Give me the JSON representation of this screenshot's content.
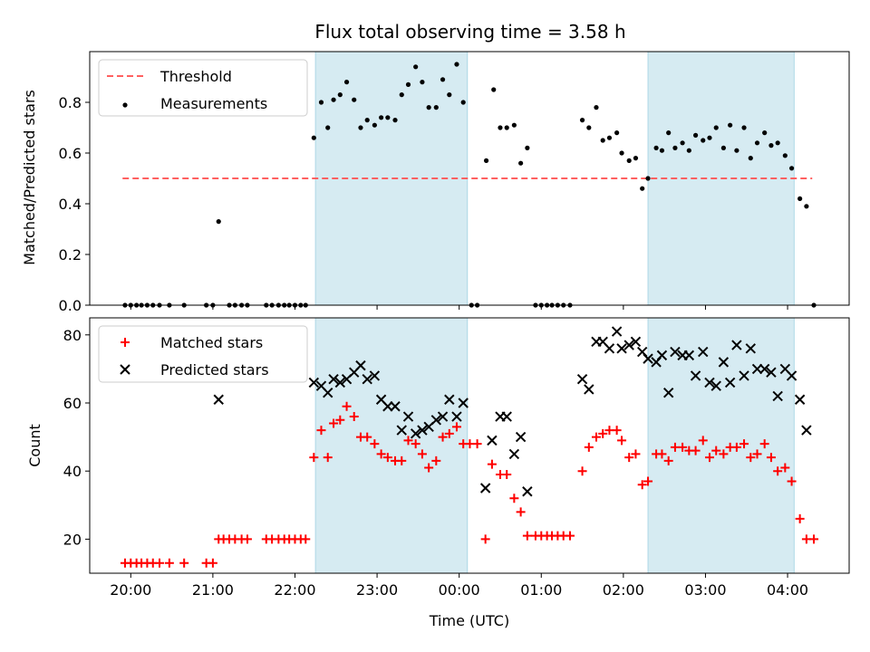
{
  "figure": {
    "title": "Flux total observing time = 3.58 h"
  },
  "chart_data": [
    {
      "type": "scatter",
      "panel": "top",
      "ylabel": "Matched/Predicted stars",
      "xlabel": "",
      "ylim": [
        0,
        1.0
      ],
      "yticks": [
        0.0,
        0.2,
        0.4,
        0.6,
        0.8
      ],
      "ytick_labels": [
        "0.0",
        "0.2",
        "0.4",
        "0.6",
        "0.8"
      ],
      "legend_position": "upper-left",
      "shaded_spans_hours": [
        [
          22.25,
          24.1
        ],
        [
          26.3,
          28.08
        ]
      ],
      "shade_color": "#add8e6",
      "threshold": {
        "name": "Threshold",
        "value": 0.5,
        "x_range": [
          19.9,
          28.3
        ],
        "color": "#ff6060",
        "style": "dashed"
      },
      "series": [
        {
          "name": "Measurements",
          "marker": "dot",
          "color": "#000000",
          "points": [
            [
              19.93,
              0
            ],
            [
              20.0,
              0
            ],
            [
              20.07,
              0
            ],
            [
              20.13,
              0
            ],
            [
              20.2,
              0
            ],
            [
              20.27,
              0
            ],
            [
              20.35,
              0
            ],
            [
              20.47,
              0
            ],
            [
              20.65,
              0
            ],
            [
              20.92,
              0
            ],
            [
              21.0,
              0
            ],
            [
              21.07,
              0.33
            ],
            [
              21.2,
              0
            ],
            [
              21.27,
              0
            ],
            [
              21.35,
              0
            ],
            [
              21.42,
              0
            ],
            [
              21.65,
              0
            ],
            [
              21.72,
              0
            ],
            [
              21.8,
              0
            ],
            [
              21.87,
              0
            ],
            [
              21.93,
              0
            ],
            [
              22.0,
              0
            ],
            [
              22.07,
              0
            ],
            [
              22.13,
              0
            ],
            [
              22.23,
              0.66
            ],
            [
              22.32,
              0.8
            ],
            [
              22.4,
              0.7
            ],
            [
              22.47,
              0.81
            ],
            [
              22.55,
              0.83
            ],
            [
              22.63,
              0.88
            ],
            [
              22.72,
              0.81
            ],
            [
              22.8,
              0.7
            ],
            [
              22.88,
              0.73
            ],
            [
              22.97,
              0.71
            ],
            [
              23.05,
              0.74
            ],
            [
              23.13,
              0.74
            ],
            [
              23.22,
              0.73
            ],
            [
              23.3,
              0.83
            ],
            [
              23.38,
              0.87
            ],
            [
              23.47,
              0.94
            ],
            [
              23.55,
              0.88
            ],
            [
              23.63,
              0.78
            ],
            [
              23.72,
              0.78
            ],
            [
              23.8,
              0.89
            ],
            [
              23.88,
              0.83
            ],
            [
              23.97,
              0.95
            ],
            [
              24.05,
              0.8
            ],
            [
              24.15,
              0
            ],
            [
              24.22,
              0
            ],
            [
              24.33,
              0.57
            ],
            [
              24.42,
              0.85
            ],
            [
              24.5,
              0.7
            ],
            [
              24.58,
              0.7
            ],
            [
              24.67,
              0.71
            ],
            [
              24.75,
              0.56
            ],
            [
              24.83,
              0.62
            ],
            [
              24.93,
              0
            ],
            [
              25.0,
              0
            ],
            [
              25.07,
              0
            ],
            [
              25.13,
              0
            ],
            [
              25.2,
              0
            ],
            [
              25.27,
              0
            ],
            [
              25.35,
              0
            ],
            [
              25.5,
              0.73
            ],
            [
              25.58,
              0.7
            ],
            [
              25.67,
              0.78
            ],
            [
              25.75,
              0.65
            ],
            [
              25.83,
              0.66
            ],
            [
              25.92,
              0.68
            ],
            [
              25.98,
              0.6
            ],
            [
              26.07,
              0.57
            ],
            [
              26.15,
              0.58
            ],
            [
              26.23,
              0.46
            ],
            [
              26.3,
              0.5
            ],
            [
              26.4,
              0.62
            ],
            [
              26.47,
              0.61
            ],
            [
              26.55,
              0.68
            ],
            [
              26.63,
              0.62
            ],
            [
              26.72,
              0.64
            ],
            [
              26.8,
              0.61
            ],
            [
              26.88,
              0.67
            ],
            [
              26.97,
              0.65
            ],
            [
              27.05,
              0.66
            ],
            [
              27.13,
              0.7
            ],
            [
              27.22,
              0.62
            ],
            [
              27.3,
              0.71
            ],
            [
              27.38,
              0.61
            ],
            [
              27.47,
              0.7
            ],
            [
              27.55,
              0.58
            ],
            [
              27.63,
              0.64
            ],
            [
              27.72,
              0.68
            ],
            [
              27.8,
              0.63
            ],
            [
              27.88,
              0.64
            ],
            [
              27.97,
              0.59
            ],
            [
              28.05,
              0.54
            ],
            [
              28.15,
              0.42
            ],
            [
              28.23,
              0.39
            ],
            [
              28.32,
              0
            ]
          ]
        }
      ]
    },
    {
      "type": "scatter",
      "panel": "bottom",
      "ylabel": "Count",
      "xlabel": "Time (UTC)",
      "ylim": [
        10,
        85
      ],
      "yticks": [
        20,
        40,
        60,
        80
      ],
      "ytick_labels": [
        "20",
        "40",
        "60",
        "80"
      ],
      "xlim_hours": [
        19.5,
        28.75
      ],
      "xticks_hours": [
        20,
        21,
        22,
        23,
        24,
        25,
        26,
        27,
        28
      ],
      "xtick_labels": [
        "20:00",
        "21:00",
        "22:00",
        "23:00",
        "00:00",
        "01:00",
        "02:00",
        "03:00",
        "04:00"
      ],
      "legend_position": "upper-left",
      "shaded_spans_hours": [
        [
          22.25,
          24.1
        ],
        [
          26.3,
          28.08
        ]
      ],
      "shade_color": "#add8e6",
      "series": [
        {
          "name": "Matched stars",
          "marker": "plus",
          "color": "#ff0000",
          "points": [
            [
              19.93,
              13
            ],
            [
              20.0,
              13
            ],
            [
              20.07,
              13
            ],
            [
              20.13,
              13
            ],
            [
              20.2,
              13
            ],
            [
              20.27,
              13
            ],
            [
              20.35,
              13
            ],
            [
              20.47,
              13
            ],
            [
              20.65,
              13
            ],
            [
              20.92,
              13
            ],
            [
              21.0,
              13
            ],
            [
              21.07,
              20
            ],
            [
              21.13,
              20
            ],
            [
              21.2,
              20
            ],
            [
              21.27,
              20
            ],
            [
              21.35,
              20
            ],
            [
              21.42,
              20
            ],
            [
              21.65,
              20
            ],
            [
              21.72,
              20
            ],
            [
              21.8,
              20
            ],
            [
              21.87,
              20
            ],
            [
              21.93,
              20
            ],
            [
              22.0,
              20
            ],
            [
              22.07,
              20
            ],
            [
              22.13,
              20
            ],
            [
              22.23,
              44
            ],
            [
              22.32,
              52
            ],
            [
              22.4,
              44
            ],
            [
              22.47,
              54
            ],
            [
              22.55,
              55
            ],
            [
              22.63,
              59
            ],
            [
              22.72,
              56
            ],
            [
              22.8,
              50
            ],
            [
              22.88,
              50
            ],
            [
              22.97,
              48
            ],
            [
              23.05,
              45
            ],
            [
              23.13,
              44
            ],
            [
              23.22,
              43
            ],
            [
              23.3,
              43
            ],
            [
              23.38,
              49
            ],
            [
              23.47,
              48
            ],
            [
              23.55,
              45
            ],
            [
              23.63,
              41
            ],
            [
              23.72,
              43
            ],
            [
              23.8,
              50
            ],
            [
              23.88,
              51
            ],
            [
              23.97,
              53
            ],
            [
              24.05,
              48
            ],
            [
              24.13,
              48
            ],
            [
              24.22,
              48
            ],
            [
              24.32,
              20
            ],
            [
              24.4,
              42
            ],
            [
              24.5,
              39
            ],
            [
              24.58,
              39
            ],
            [
              24.67,
              32
            ],
            [
              24.75,
              28
            ],
            [
              24.83,
              21
            ],
            [
              24.93,
              21
            ],
            [
              25.0,
              21
            ],
            [
              25.07,
              21
            ],
            [
              25.13,
              21
            ],
            [
              25.2,
              21
            ],
            [
              25.27,
              21
            ],
            [
              25.35,
              21
            ],
            [
              25.5,
              40
            ],
            [
              25.58,
              47
            ],
            [
              25.67,
              50
            ],
            [
              25.75,
              51
            ],
            [
              25.83,
              52
            ],
            [
              25.92,
              52
            ],
            [
              25.98,
              49
            ],
            [
              26.07,
              44
            ],
            [
              26.15,
              45
            ],
            [
              26.23,
              36
            ],
            [
              26.3,
              37
            ],
            [
              26.4,
              45
            ],
            [
              26.47,
              45
            ],
            [
              26.55,
              43
            ],
            [
              26.63,
              47
            ],
            [
              26.72,
              47
            ],
            [
              26.8,
              46
            ],
            [
              26.88,
              46
            ],
            [
              26.97,
              49
            ],
            [
              27.05,
              44
            ],
            [
              27.13,
              46
            ],
            [
              27.22,
              45
            ],
            [
              27.3,
              47
            ],
            [
              27.38,
              47
            ],
            [
              27.47,
              48
            ],
            [
              27.55,
              44
            ],
            [
              27.63,
              45
            ],
            [
              27.72,
              48
            ],
            [
              27.8,
              44
            ],
            [
              27.88,
              40
            ],
            [
              27.97,
              41
            ],
            [
              28.05,
              37
            ],
            [
              28.15,
              26
            ],
            [
              28.23,
              20
            ],
            [
              28.32,
              20
            ]
          ]
        },
        {
          "name": "Predicted stars",
          "marker": "x",
          "color": "#000000",
          "points": [
            [
              21.07,
              61
            ],
            [
              22.23,
              66
            ],
            [
              22.32,
              65
            ],
            [
              22.4,
              63
            ],
            [
              22.47,
              67
            ],
            [
              22.55,
              66
            ],
            [
              22.63,
              67
            ],
            [
              22.72,
              69
            ],
            [
              22.8,
              71
            ],
            [
              22.88,
              67
            ],
            [
              22.97,
              68
            ],
            [
              23.05,
              61
            ],
            [
              23.13,
              59
            ],
            [
              23.22,
              59
            ],
            [
              23.3,
              52
            ],
            [
              23.38,
              56
            ],
            [
              23.47,
              51
            ],
            [
              23.55,
              52
            ],
            [
              23.63,
              53
            ],
            [
              23.72,
              55
            ],
            [
              23.8,
              56
            ],
            [
              23.88,
              61
            ],
            [
              23.97,
              56
            ],
            [
              24.05,
              60
            ],
            [
              24.32,
              35
            ],
            [
              24.4,
              49
            ],
            [
              24.5,
              56
            ],
            [
              24.58,
              56
            ],
            [
              24.67,
              45
            ],
            [
              24.75,
              50
            ],
            [
              24.83,
              34
            ],
            [
              25.5,
              67
            ],
            [
              25.58,
              64
            ],
            [
              25.67,
              78
            ],
            [
              25.75,
              78
            ],
            [
              25.83,
              76
            ],
            [
              25.92,
              81
            ],
            [
              25.98,
              76
            ],
            [
              26.07,
              77
            ],
            [
              26.15,
              78
            ],
            [
              26.23,
              75
            ],
            [
              26.3,
              73
            ],
            [
              26.4,
              72
            ],
            [
              26.47,
              74
            ],
            [
              26.55,
              63
            ],
            [
              26.63,
              75
            ],
            [
              26.72,
              74
            ],
            [
              26.8,
              74
            ],
            [
              26.88,
              68
            ],
            [
              26.97,
              75
            ],
            [
              27.05,
              66
            ],
            [
              27.13,
              65
            ],
            [
              27.22,
              72
            ],
            [
              27.3,
              66
            ],
            [
              27.38,
              77
            ],
            [
              27.47,
              68
            ],
            [
              27.55,
              76
            ],
            [
              27.63,
              70
            ],
            [
              27.72,
              70
            ],
            [
              27.8,
              69
            ],
            [
              27.88,
              62
            ],
            [
              27.97,
              70
            ],
            [
              28.05,
              68
            ],
            [
              28.15,
              61
            ],
            [
              28.23,
              52
            ]
          ]
        }
      ]
    }
  ]
}
